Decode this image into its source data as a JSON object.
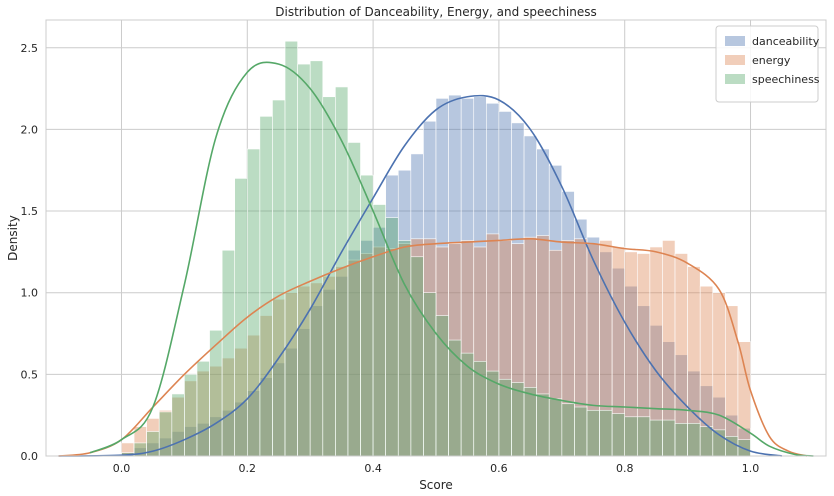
{
  "chart_data": {
    "type": "histogram",
    "title": "Distribution of Danceability, Energy, and speechiness",
    "xlabel": "Score",
    "ylabel": "Density",
    "xlim": [
      -0.12,
      1.12
    ],
    "ylim": [
      0,
      2.67
    ],
    "x_ticks": [
      0.0,
      0.2,
      0.4,
      0.6,
      0.8,
      1.0
    ],
    "x_tick_labels": [
      "0.0",
      "0.2",
      "0.4",
      "0.6",
      "0.8",
      "1.0"
    ],
    "y_ticks": [
      0.0,
      0.5,
      1.0,
      1.5,
      2.0,
      2.5
    ],
    "y_tick_labels": [
      "0.0",
      "0.5",
      "1.0",
      "1.5",
      "2.0",
      "2.5"
    ],
    "grid": true,
    "legend_position": "top-right",
    "bins": {
      "start": 0.0,
      "width": 0.02,
      "count": 50
    },
    "series": [
      {
        "name": "danceability",
        "color": "#4c72b0",
        "hist": [
          0.02,
          0.05,
          0.08,
          0.11,
          0.15,
          0.18,
          0.2,
          0.24,
          0.28,
          0.33,
          0.4,
          0.48,
          0.57,
          0.66,
          0.78,
          0.92,
          1.02,
          1.1,
          1.26,
          1.32,
          1.4,
          1.72,
          1.75,
          1.85,
          2.05,
          2.19,
          2.21,
          2.19,
          2.2,
          2.16,
          2.11,
          2.04,
          1.96,
          1.88,
          1.78,
          1.62,
          1.45,
          1.34,
          1.25,
          1.15,
          1.04,
          0.92,
          0.8,
          0.7,
          0.62,
          0.52,
          0.43,
          0.36,
          0.25,
          0.17
        ],
        "kde": [
          [
            -0.1,
            0
          ],
          [
            0,
            0.005
          ],
          [
            0.05,
            0.03
          ],
          [
            0.1,
            0.1
          ],
          [
            0.15,
            0.2
          ],
          [
            0.2,
            0.35
          ],
          [
            0.25,
            0.6
          ],
          [
            0.3,
            0.9
          ],
          [
            0.35,
            1.25
          ],
          [
            0.4,
            1.58
          ],
          [
            0.45,
            1.9
          ],
          [
            0.5,
            2.12
          ],
          [
            0.55,
            2.2
          ],
          [
            0.6,
            2.18
          ],
          [
            0.65,
            2.0
          ],
          [
            0.7,
            1.65
          ],
          [
            0.75,
            1.2
          ],
          [
            0.8,
            0.82
          ],
          [
            0.85,
            0.52
          ],
          [
            0.9,
            0.3
          ],
          [
            0.95,
            0.13
          ],
          [
            1.0,
            0.03
          ],
          [
            1.05,
            0
          ]
        ]
      },
      {
        "name": "energy",
        "color": "#dd8452",
        "hist": [
          0.08,
          0.18,
          0.23,
          0.28,
          0.36,
          0.46,
          0.52,
          0.55,
          0.6,
          0.66,
          0.74,
          0.86,
          0.96,
          1.0,
          1.04,
          1.06,
          1.1,
          1.16,
          1.2,
          1.24,
          1.28,
          1.27,
          1.3,
          1.33,
          1.33,
          1.28,
          1.3,
          1.32,
          1.28,
          1.36,
          1.32,
          1.3,
          1.34,
          1.35,
          1.26,
          1.32,
          1.33,
          1.3,
          1.32,
          1.28,
          1.25,
          1.24,
          1.28,
          1.32,
          1.24,
          1.16,
          1.04,
          1.0,
          0.92,
          0.7
        ],
        "kde": [
          [
            -0.1,
            0
          ],
          [
            -0.05,
            0.02
          ],
          [
            0,
            0.1
          ],
          [
            0.05,
            0.3
          ],
          [
            0.1,
            0.5
          ],
          [
            0.15,
            0.68
          ],
          [
            0.2,
            0.85
          ],
          [
            0.25,
            0.98
          ],
          [
            0.3,
            1.07
          ],
          [
            0.35,
            1.15
          ],
          [
            0.4,
            1.22
          ],
          [
            0.45,
            1.28
          ],
          [
            0.5,
            1.3
          ],
          [
            0.55,
            1.31
          ],
          [
            0.6,
            1.32
          ],
          [
            0.65,
            1.33
          ],
          [
            0.7,
            1.31
          ],
          [
            0.75,
            1.3
          ],
          [
            0.8,
            1.27
          ],
          [
            0.85,
            1.25
          ],
          [
            0.9,
            1.18
          ],
          [
            0.95,
            1.02
          ],
          [
            0.98,
            0.7
          ],
          [
            1.0,
            0.4
          ],
          [
            1.03,
            0.12
          ],
          [
            1.06,
            0.03
          ],
          [
            1.09,
            0
          ]
        ]
      },
      {
        "name": "speechiness",
        "color": "#55a868",
        "hist": [
          0.02,
          0.08,
          0.15,
          0.27,
          0.38,
          0.5,
          0.58,
          0.77,
          1.26,
          1.7,
          1.88,
          2.08,
          2.18,
          2.54,
          2.4,
          2.42,
          2.2,
          2.26,
          1.92,
          1.72,
          1.54,
          1.46,
          1.32,
          1.22,
          1.0,
          0.86,
          0.71,
          0.63,
          0.58,
          0.52,
          0.47,
          0.45,
          0.42,
          0.38,
          0.35,
          0.32,
          0.3,
          0.28,
          0.28,
          0.26,
          0.24,
          0.24,
          0.22,
          0.22,
          0.2,
          0.2,
          0.18,
          0.16,
          0.12,
          0.1
        ],
        "kde": [
          [
            -0.05,
            0.02
          ],
          [
            0,
            0.1
          ],
          [
            0.05,
            0.3
          ],
          [
            0.1,
            1.05
          ],
          [
            0.15,
            1.95
          ],
          [
            0.2,
            2.35
          ],
          [
            0.25,
            2.4
          ],
          [
            0.3,
            2.25
          ],
          [
            0.35,
            1.93
          ],
          [
            0.4,
            1.5
          ],
          [
            0.45,
            1.05
          ],
          [
            0.5,
            0.75
          ],
          [
            0.55,
            0.55
          ],
          [
            0.6,
            0.44
          ],
          [
            0.65,
            0.38
          ],
          [
            0.7,
            0.34
          ],
          [
            0.75,
            0.31
          ],
          [
            0.8,
            0.3
          ],
          [
            0.85,
            0.29
          ],
          [
            0.9,
            0.28
          ],
          [
            0.95,
            0.25
          ],
          [
            1.0,
            0.14
          ],
          [
            1.03,
            0.06
          ],
          [
            1.07,
            0.01
          ],
          [
            1.1,
            0
          ]
        ]
      }
    ]
  }
}
